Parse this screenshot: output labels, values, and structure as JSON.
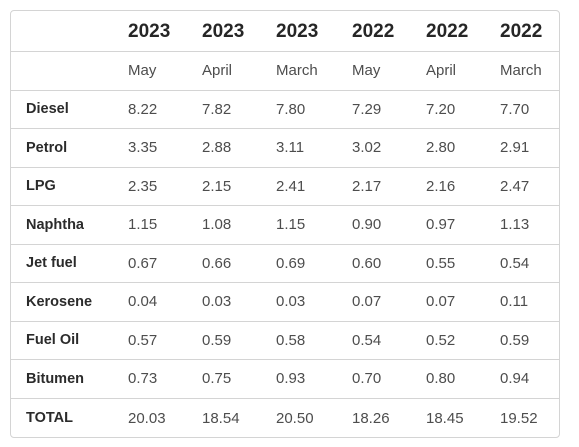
{
  "table": {
    "years": [
      "",
      "2023",
      "2023",
      "2023",
      "2022",
      "2022",
      "2022"
    ],
    "months": [
      "",
      "May",
      "April",
      "March",
      "May",
      "April",
      "March"
    ],
    "rows": [
      {
        "label": "Diesel",
        "values": [
          "8.22",
          "7.82",
          "7.80",
          "7.29",
          "7.20",
          "7.70"
        ]
      },
      {
        "label": "Petrol",
        "values": [
          "3.35",
          "2.88",
          "3.11",
          "3.02",
          "2.80",
          "2.91"
        ]
      },
      {
        "label": "LPG",
        "values": [
          "2.35",
          "2.15",
          "2.41",
          "2.17",
          "2.16",
          "2.47"
        ]
      },
      {
        "label": "Naphtha",
        "values": [
          "1.15",
          "1.08",
          "1.15",
          "0.90",
          "0.97",
          "1.13"
        ]
      },
      {
        "label": "Jet fuel",
        "values": [
          "0.67",
          "0.66",
          "0.69",
          "0.60",
          "0.55",
          "0.54"
        ]
      },
      {
        "label": "Kerosene",
        "values": [
          "0.04",
          "0.03",
          "0.03",
          "0.07",
          "0.07",
          "0.11"
        ]
      },
      {
        "label": "Fuel Oil",
        "values": [
          "0.57",
          "0.59",
          "0.58",
          "0.54",
          "0.52",
          "0.59"
        ]
      },
      {
        "label": "Bitumen",
        "values": [
          "0.73",
          "0.75",
          "0.93",
          "0.70",
          "0.80",
          "0.94"
        ]
      },
      {
        "label": "TOTAL",
        "values": [
          "20.03",
          "18.54",
          "20.50",
          "18.26",
          "18.45",
          "19.52"
        ]
      }
    ]
  }
}
